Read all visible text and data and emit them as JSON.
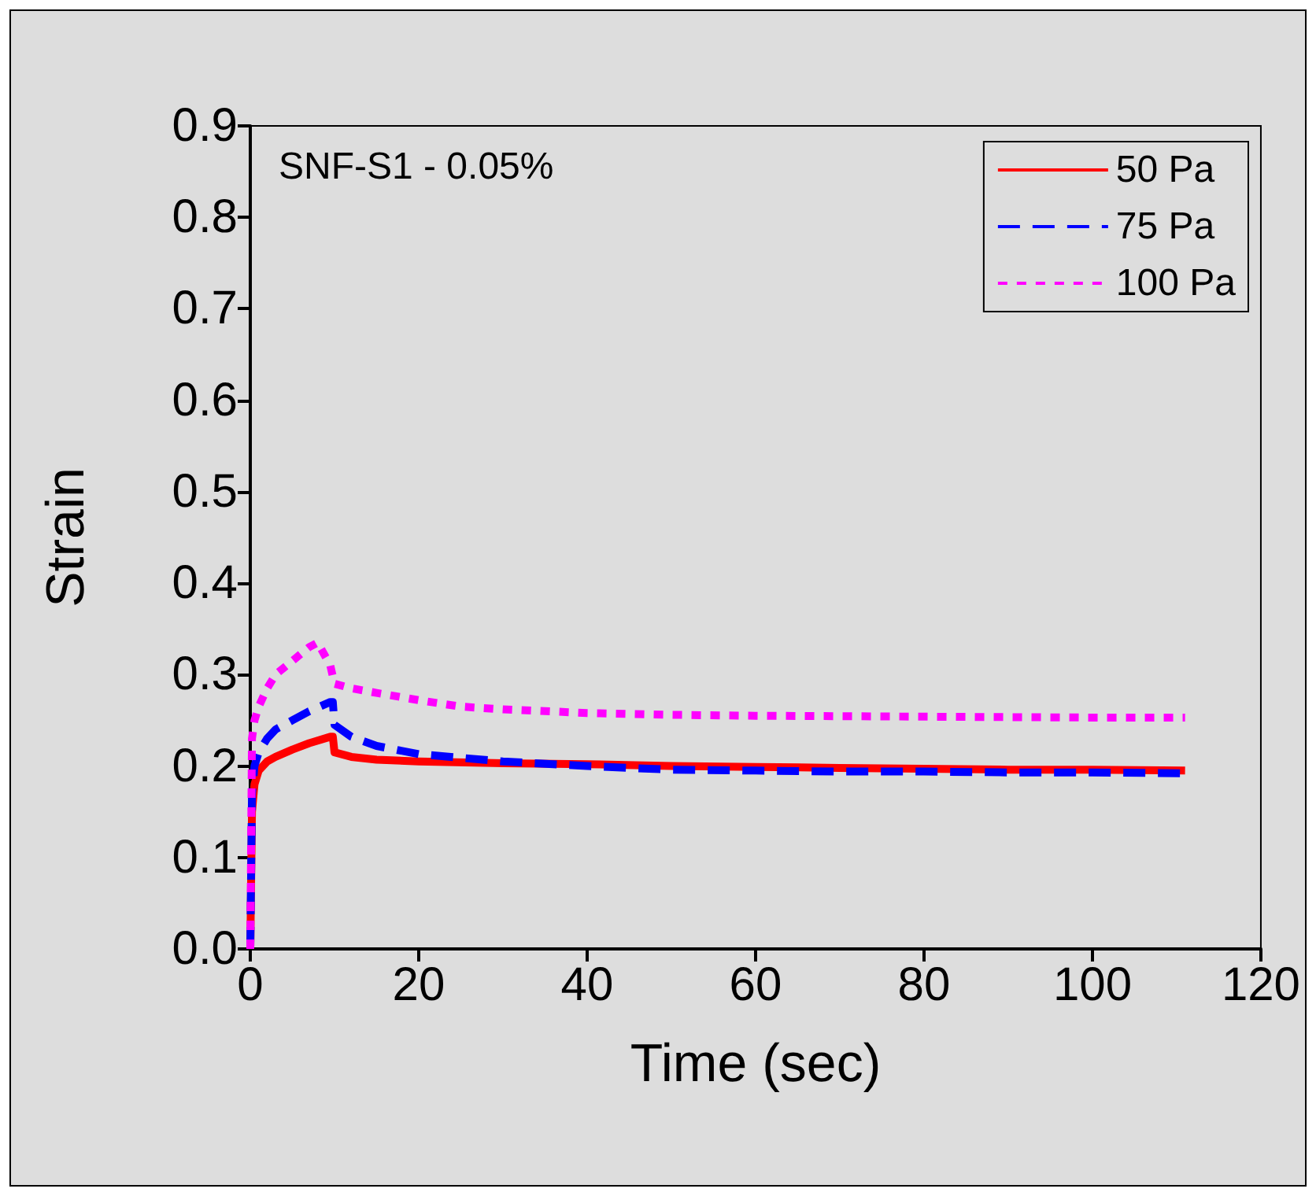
{
  "chart_data": {
    "type": "line",
    "xlabel": "Time (sec)",
    "ylabel": "Strain",
    "annotations": [
      "SNF-S1 - 0.05%"
    ],
    "xlim": [
      0,
      120
    ],
    "xticks": [
      0,
      20,
      40,
      60,
      80,
      100,
      120
    ],
    "ylim": [
      0,
      0.9
    ],
    "yticks": [
      {
        "value": 0,
        "label": "0.0"
      },
      0.1,
      0.2,
      0.3,
      0.4,
      0.5,
      0.6,
      0.7,
      0.8,
      0.9
    ],
    "grid": false,
    "legend": "top right",
    "marker": "none",
    "series": [
      {
        "name": "50 Pa",
        "color": "#ff0000",
        "line_style": "solid",
        "x": [
          0,
          0.2,
          0.5,
          1,
          2,
          3,
          5,
          7,
          9.5,
          9.8,
          10,
          12,
          15,
          20,
          30,
          40,
          50,
          60,
          70,
          80,
          90,
          100,
          111
        ],
        "values": [
          0,
          0.15,
          0.18,
          0.195,
          0.205,
          0.21,
          0.218,
          0.225,
          0.232,
          0.232,
          0.215,
          0.21,
          0.207,
          0.205,
          0.203,
          0.202,
          0.2,
          0.199,
          0.198,
          0.197,
          0.196,
          0.196,
          0.195
        ]
      },
      {
        "name": "75 Pa",
        "color": "#0000ff",
        "line_style": "dashed",
        "x": [
          0,
          0.2,
          0.5,
          1,
          2,
          3,
          5,
          7,
          9.5,
          9.8,
          10,
          12,
          15,
          20,
          30,
          40,
          50,
          60,
          70,
          80,
          90,
          100,
          111
        ],
        "values": [
          0,
          0.17,
          0.2,
          0.215,
          0.23,
          0.24,
          0.25,
          0.26,
          0.27,
          0.27,
          0.245,
          0.232,
          0.222,
          0.213,
          0.205,
          0.2,
          0.196,
          0.195,
          0.194,
          0.194,
          0.193,
          0.193,
          0.192
        ]
      },
      {
        "name": "100 Pa",
        "color": "#ff00ff",
        "line_style": "dotted",
        "x": [
          0,
          0.2,
          0.5,
          1,
          2,
          3,
          5,
          7,
          8,
          9.5,
          10,
          12,
          15,
          20,
          25,
          30,
          40,
          50,
          60,
          80,
          100,
          111
        ],
        "values": [
          0,
          0.23,
          0.25,
          0.265,
          0.285,
          0.3,
          0.315,
          0.33,
          0.335,
          0.31,
          0.29,
          0.285,
          0.28,
          0.272,
          0.265,
          0.262,
          0.258,
          0.256,
          0.255,
          0.254,
          0.253,
          0.253
        ]
      }
    ]
  }
}
